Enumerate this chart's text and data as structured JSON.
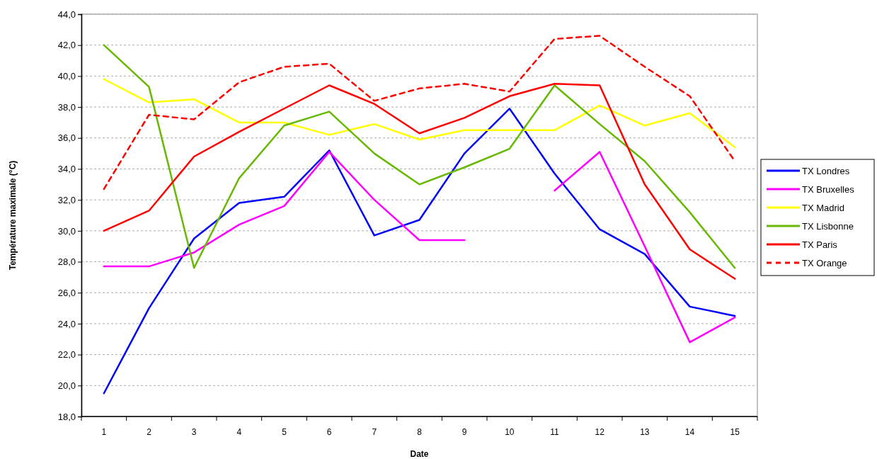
{
  "chart_data": {
    "type": "line",
    "xlabel": "Date",
    "ylabel": "Température maximale (°C)",
    "categories": [
      "1",
      "2",
      "3",
      "4",
      "5",
      "6",
      "7",
      "8",
      "9",
      "10",
      "11",
      "12",
      "13",
      "14",
      "15"
    ],
    "ylim": [
      18,
      44
    ],
    "yticks": [
      {
        "value": 18,
        "label": "18,0"
      },
      {
        "value": 20,
        "label": "20,0"
      },
      {
        "value": 22,
        "label": "22,0"
      },
      {
        "value": 24,
        "label": "24,0"
      },
      {
        "value": 26,
        "label": "26,0"
      },
      {
        "value": 28,
        "label": "28,0"
      },
      {
        "value": 30,
        "label": "30,0"
      },
      {
        "value": 32,
        "label": "32,0"
      },
      {
        "value": 34,
        "label": "34,0"
      },
      {
        "value": 36,
        "label": "36,0"
      },
      {
        "value": 38,
        "label": "38,0"
      },
      {
        "value": 40,
        "label": "40,0"
      },
      {
        "value": 42,
        "label": "42,0"
      },
      {
        "value": 44,
        "label": "44,0"
      }
    ],
    "grid": "y",
    "legend": "right",
    "series": [
      {
        "name": "TX Londres",
        "color": "#0000ff",
        "values": [
          19.5,
          25.0,
          29.5,
          31.8,
          32.2,
          35.2,
          29.7,
          30.7,
          35.0,
          37.9,
          33.7,
          30.1,
          28.5,
          25.1,
          24.5
        ]
      },
      {
        "name": "TX Bruxelles",
        "color": "#ff00ff",
        "values": [
          27.7,
          27.7,
          28.6,
          30.4,
          31.6,
          35.1,
          32.0,
          29.4,
          29.4,
          null,
          32.6,
          35.1,
          29.0,
          22.8,
          24.4
        ]
      },
      {
        "name": "TX Madrid",
        "color": "#ffff00",
        "values": [
          39.8,
          38.3,
          38.5,
          37.0,
          37.0,
          36.2,
          36.9,
          35.9,
          36.5,
          36.5,
          36.5,
          38.1,
          36.8,
          37.6,
          35.4
        ]
      },
      {
        "name": "TX Lisbonne",
        "color": "#66b800",
        "values": [
          42.0,
          39.3,
          27.6,
          33.4,
          36.8,
          37.7,
          35.0,
          33.0,
          34.1,
          35.3,
          39.4,
          36.9,
          34.5,
          31.2,
          27.6
        ]
      },
      {
        "name": "TX Paris",
        "color": "#ff0000",
        "values": [
          30.0,
          31.3,
          34.8,
          36.4,
          37.9,
          39.4,
          38.2,
          36.3,
          37.3,
          38.7,
          39.5,
          39.4,
          33.0,
          28.8,
          26.9
        ]
      },
      {
        "name": "TX Orange",
        "color": "#ff0000",
        "line_style": "dashed",
        "values": [
          32.7,
          37.5,
          37.2,
          39.6,
          40.6,
          40.8,
          38.4,
          39.2,
          39.5,
          39.0,
          42.4,
          42.6,
          40.6,
          38.7,
          34.5
        ]
      }
    ]
  }
}
